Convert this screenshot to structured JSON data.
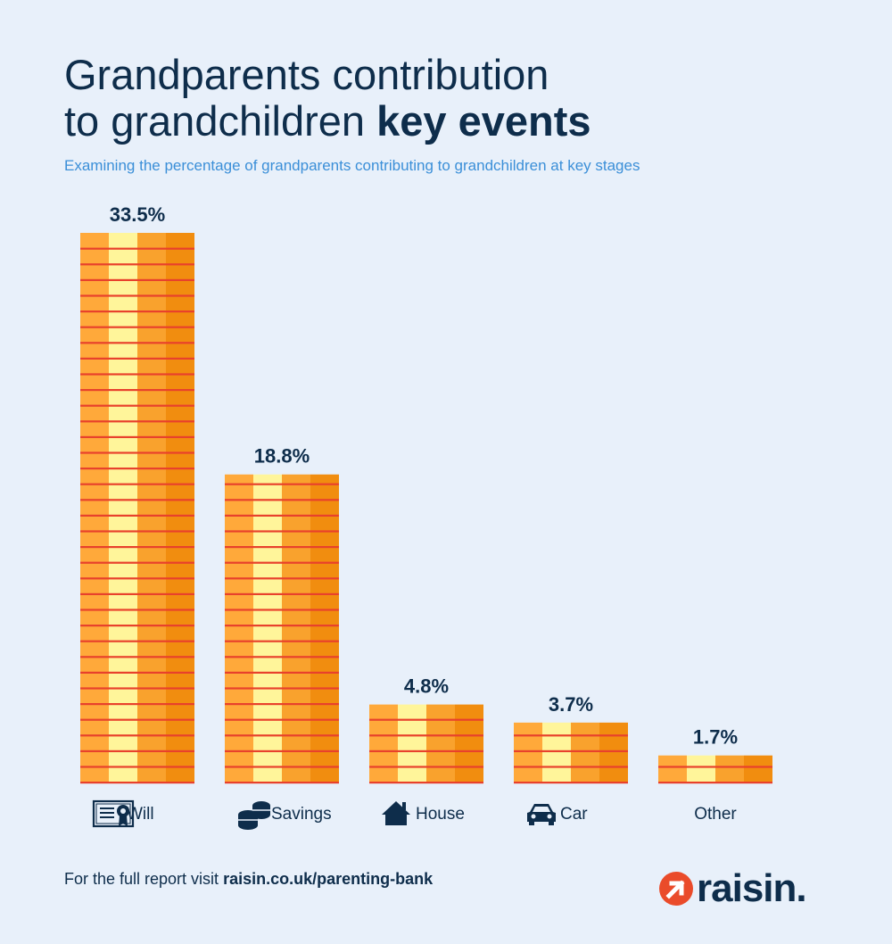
{
  "header": {
    "title_line1": "Grandparents contribution",
    "title_line2_regular": "to grandchildren ",
    "title_line2_bold": "key events",
    "subtitle": "Examining the percentage of grandparents contributing to grandchildren at key stages"
  },
  "chart_data": {
    "type": "bar",
    "categories": [
      "Will",
      "Savings",
      "House",
      "Car",
      "Other"
    ],
    "values": [
      33.5,
      18.8,
      4.8,
      3.7,
      1.7
    ],
    "value_labels": [
      "33.5%",
      "18.8%",
      "4.8%",
      "3.7%",
      "1.7%"
    ],
    "category_icons": [
      "certificate-icon",
      "coins-icon",
      "house-icon",
      "car-icon",
      ""
    ],
    "unit": "%",
    "colors": {
      "coin_light": "#ffa93a",
      "coin_highlight": "#fff59a",
      "coin_mid": "#f9a22d",
      "coin_dark": "#f18d0f",
      "coin_edge": "#e8412c"
    }
  },
  "footer": {
    "text": "For the full report visit ",
    "url": "raisin.co.uk/parenting-bank"
  },
  "logo": {
    "text": "raisin.",
    "mark_color": "#ea4b2a"
  }
}
